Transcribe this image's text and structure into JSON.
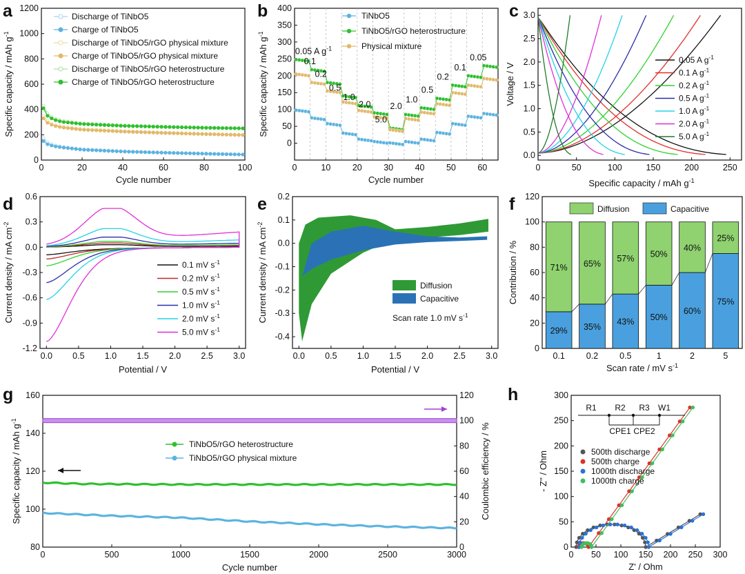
{
  "chart_data": [
    {
      "panel": "a",
      "type": "scatter",
      "xlabel": "Cycle number",
      "ylabel": "Specific capacity / mAh g",
      "xlim": [
        0,
        100
      ],
      "ylim": [
        0,
        1200
      ],
      "xticks": [
        0,
        20,
        40,
        60,
        80,
        100
      ],
      "yticks": [
        0,
        200,
        400,
        600,
        800,
        1000,
        1200
      ],
      "legend": [
        "Discharge of TiNbO5",
        "Charge of TiNbO5",
        "Discharge of TiNbO5/rGO physical mixture",
        "Charge of TiNbO5/rGO physical mixture",
        "Discharge of TiNbO5/rGO heterostructure",
        "Charge of TiNbO5/rGO heterostructure"
      ],
      "series": [
        {
          "name": "Discharge of TiNbO5",
          "color": "#a9d3ee",
          "open": true,
          "points": [
            [
              1,
              175
            ],
            [
              3,
              140
            ],
            [
              6,
              118
            ],
            [
              10,
              105
            ],
            [
              20,
              85
            ],
            [
              40,
              70
            ],
            [
              60,
              60
            ],
            [
              80,
              52
            ],
            [
              100,
              45
            ]
          ]
        },
        {
          "name": "Charge of TiNbO5",
          "color": "#5cb3e0",
          "open": false,
          "points": [
            [
              1,
              150
            ],
            [
              3,
              125
            ],
            [
              6,
              110
            ],
            [
              10,
              100
            ],
            [
              20,
              82
            ],
            [
              40,
              67
            ],
            [
              60,
              58
            ],
            [
              80,
              50
            ],
            [
              100,
              43
            ]
          ]
        },
        {
          "name": "Discharge of TiNbO5/rGO physical mixture",
          "color": "#f2d9a6",
          "open": true,
          "points": [
            [
              1,
              350
            ],
            [
              3,
              310
            ],
            [
              6,
              280
            ],
            [
              10,
              265
            ],
            [
              20,
              245
            ],
            [
              40,
              230
            ],
            [
              60,
              218
            ],
            [
              80,
              208
            ],
            [
              100,
              200
            ]
          ]
        },
        {
          "name": "Charge of TiNbO5/rGO physical mixture",
          "color": "#e2b96b",
          "open": false,
          "points": [
            [
              1,
              330
            ],
            [
              3,
              295
            ],
            [
              6,
              272
            ],
            [
              10,
              258
            ],
            [
              20,
              240
            ],
            [
              40,
              225
            ],
            [
              60,
              214
            ],
            [
              80,
              205
            ],
            [
              100,
              197
            ]
          ]
        },
        {
          "name": "Discharge of TiNbO5/rGO heterostructure",
          "color": "#a9e3a0",
          "open": true,
          "points": [
            [
              1,
              430
            ],
            [
              3,
              370
            ],
            [
              6,
              330
            ],
            [
              10,
              310
            ],
            [
              20,
              290
            ],
            [
              40,
              275
            ],
            [
              60,
              265
            ],
            [
              80,
              258
            ],
            [
              100,
              252
            ]
          ]
        },
        {
          "name": "Charge of TiNbO5/rGO heterostructure",
          "color": "#2fbf2f",
          "open": false,
          "points": [
            [
              1,
              410
            ],
            [
              3,
              350
            ],
            [
              6,
              320
            ],
            [
              10,
              302
            ],
            [
              20,
              285
            ],
            [
              40,
              270
            ],
            [
              60,
              262
            ],
            [
              80,
              255
            ],
            [
              100,
              250
            ]
          ]
        }
      ]
    },
    {
      "panel": "b",
      "type": "scatter",
      "xlabel": "Cycle number",
      "ylabel": "Specific capacity / mAh g",
      "xlim": [
        0,
        65
      ],
      "ylim": [
        -50,
        400
      ],
      "xticks": [
        0,
        10,
        20,
        30,
        40,
        50,
        60
      ],
      "yticks": [
        0,
        50,
        100,
        150,
        200,
        250,
        300,
        350,
        400
      ],
      "legend": [
        "TiNbO5",
        "TiNbO5/rGO heterostructure",
        "Physical mixture"
      ],
      "rate_labels": [
        "0.05 A g",
        "0.1",
        "0.2",
        "0.5",
        "1.0",
        "2.0",
        "5.0",
        "2.0",
        "1.0",
        "0.5",
        "0.2",
        "0.1",
        "0.05"
      ],
      "series": [
        {
          "name": "TiNbO5",
          "color": "#5cb3e0",
          "segments": [
            98,
            75,
            58,
            30,
            12,
            5,
            1,
            5,
            12,
            32,
            58,
            80,
            88
          ]
        },
        {
          "name": "TiNbO5/rGO heterostructure",
          "color": "#2fbf2f",
          "segments": [
            248,
            218,
            180,
            140,
            112,
            90,
            45,
            85,
            105,
            133,
            172,
            200,
            230
          ]
        },
        {
          "name": "Physical mixture",
          "color": "#e2b96b",
          "segments": [
            205,
            180,
            155,
            122,
            97,
            78,
            40,
            73,
            92,
            117,
            150,
            172,
            192
          ]
        }
      ]
    },
    {
      "panel": "c",
      "type": "line",
      "xlabel": "Specific capacity / mAh g",
      "ylabel": "Voltage / V",
      "xlim": [
        0,
        265
      ],
      "ylim": [
        -0.1,
        3.15
      ],
      "xticks": [
        0,
        50,
        100,
        150,
        200,
        250
      ],
      "yticks": [
        0.0,
        0.5,
        1.0,
        1.5,
        2.0,
        2.5,
        3.0
      ],
      "legend": [
        "0.05 A g",
        "0.1 A g",
        "0.2 A g",
        "0.5 A g",
        "1.0 A g",
        "2.0 A g",
        "5.0 A g"
      ],
      "series": [
        {
          "name": "0.05 A g",
          "color": "#111111",
          "capacity": 245
        },
        {
          "name": "0.1 A g",
          "color": "#e0302a",
          "capacity": 218
        },
        {
          "name": "0.2 A g",
          "color": "#2fd12f",
          "capacity": 182
        },
        {
          "name": "0.5 A g",
          "color": "#2b2ba8",
          "capacity": 145
        },
        {
          "name": "1.0 A g",
          "color": "#22d3e6",
          "capacity": 113
        },
        {
          "name": "2.0 A g",
          "color": "#e02fd5",
          "capacity": 85
        },
        {
          "name": "5.0 A g",
          "color": "#1f7a2a",
          "capacity": 43
        }
      ]
    },
    {
      "panel": "d",
      "type": "line",
      "xlabel": "Potential / V",
      "ylabel": "Current density / mA cm",
      "xlim": [
        -0.1,
        3.1
      ],
      "ylim": [
        -1.2,
        0.6
      ],
      "xticks": [
        0.0,
        0.5,
        1.0,
        1.5,
        2.0,
        2.5,
        3.0
      ],
      "yticks": [
        -1.2,
        -0.9,
        -0.6,
        -0.3,
        0.0,
        0.3,
        0.6
      ],
      "legend": [
        "0.1 mV s",
        "0.2 mV s",
        "0.5 mV s",
        "1.0 mV s",
        "2.0 mV s",
        "5.0 mV s"
      ],
      "series": [
        {
          "name": "0.1 mV s",
          "color": "#111111",
          "peak_ox": 0.03,
          "peak_red": -0.07
        },
        {
          "name": "0.2 mV s",
          "color": "#c0282a",
          "peak_ox": 0.05,
          "peak_red": -0.12
        },
        {
          "name": "0.5 mV s",
          "color": "#2fd12f",
          "peak_ox": 0.07,
          "peak_red": -0.2
        },
        {
          "name": "1.0 mV s",
          "color": "#2b2ba8",
          "peak_ox": 0.12,
          "peak_red": -0.4
        },
        {
          "name": "2.0 mV s",
          "color": "#22d3e6",
          "peak_ox": 0.22,
          "peak_red": -0.6
        },
        {
          "name": "5.0 mV s",
          "color": "#e02fd5",
          "peak_ox": 0.46,
          "peak_red": -1.1
        }
      ]
    },
    {
      "panel": "e",
      "type": "area",
      "xlabel": "Potential / V",
      "ylabel": "Current density / mA cm",
      "xlim": [
        -0.1,
        3.1
      ],
      "ylim": [
        -0.45,
        0.2
      ],
      "xticks": [
        0.0,
        0.5,
        1.0,
        1.5,
        2.0,
        2.5,
        3.0
      ],
      "yticks": [
        -0.4,
        -0.3,
        -0.2,
        -0.1,
        0.0,
        0.1,
        0.2
      ],
      "legend": [
        "Diffusion",
        "Capacitive"
      ],
      "annotation": "Scan rate 1.0 mV s",
      "colors": {
        "Diffusion": "#2f9a35",
        "Capacitive": "#2a72b5"
      }
    },
    {
      "panel": "f",
      "type": "bar",
      "xlabel": "Scan rate / mV s",
      "ylabel": "Contribution / %",
      "ylim": [
        0,
        120
      ],
      "yticks": [
        0,
        20,
        40,
        60,
        80,
        100,
        120
      ],
      "categories": [
        "0.1",
        "0.2",
        "0.5",
        "1",
        "2",
        "5"
      ],
      "series": [
        {
          "name": "Capacitive",
          "values": [
            29,
            35,
            43,
            50,
            60,
            75
          ],
          "color": "#4aa0de"
        },
        {
          "name": "Diffusion",
          "values": [
            71,
            65,
            57,
            50,
            40,
            25
          ],
          "color": "#8fd26f"
        }
      ]
    },
    {
      "panel": "g",
      "type": "scatter",
      "xlabel": "Cycle number",
      "ylabel": "Specific capacity / mAh g",
      "y2label": "Coulombic efficiency / %",
      "xlim": [
        0,
        3000
      ],
      "ylim": [
        80,
        160
      ],
      "y2lim": [
        0,
        120
      ],
      "xticks": [
        0,
        500,
        1000,
        1500,
        2000,
        2500,
        3000
      ],
      "yticks": [
        80,
        100,
        120,
        140,
        160
      ],
      "y2ticks": [
        0,
        20,
        40,
        60,
        80,
        100,
        120
      ],
      "legend": [
        "TiNbO5/rGO heterostructure",
        "TiNbO5/rGO physical mixture"
      ],
      "series": [
        {
          "name": "TiNbO5/rGO heterostructure",
          "color": "#2fbf2f",
          "points": [
            [
              0,
              114
            ],
            [
              300,
              113.3
            ],
            [
              1000,
              113
            ],
            [
              2000,
              113
            ],
            [
              3000,
              113
            ]
          ]
        },
        {
          "name": "TiNbO5/rGO physical mixture",
          "color": "#5cb3e0",
          "points": [
            [
              0,
              98
            ],
            [
              500,
              96.5
            ],
            [
              1000,
              95.5
            ],
            [
              1500,
              93.5
            ],
            [
              2000,
              92
            ],
            [
              2500,
              90.8
            ],
            [
              3000,
              90
            ]
          ]
        },
        {
          "name": "Coulombic efficiency",
          "color": "#a23fd6",
          "points": [
            [
              0,
              100
            ],
            [
              3000,
              100
            ]
          ]
        }
      ]
    },
    {
      "panel": "h",
      "type": "scatter",
      "xlabel": "Z' / Ohm",
      "ylabel": "- Z'' / Ohm",
      "xlim": [
        0,
        300
      ],
      "ylim": [
        0,
        300
      ],
      "xticks": [
        0,
        50,
        100,
        150,
        200,
        250,
        300
      ],
      "yticks": [
        0,
        50,
        100,
        150,
        200,
        250,
        300
      ],
      "legend": [
        "500th discharge",
        "500th charge",
        "1000th discharge",
        "1000th charge"
      ],
      "circuit_labels": [
        "R1",
        "R2",
        "R3",
        "W1",
        "CPE1",
        "CPE2"
      ],
      "series": [
        {
          "name": "500th discharge",
          "color": "#555555",
          "shape": "semicircle"
        },
        {
          "name": "500th charge",
          "color": "#e0302a",
          "shape": "steep"
        },
        {
          "name": "1000th discharge",
          "color": "#2a72d5",
          "shape": "semicircle"
        },
        {
          "name": "1000th charge",
          "color": "#3fbf5f",
          "shape": "steep"
        }
      ]
    }
  ]
}
